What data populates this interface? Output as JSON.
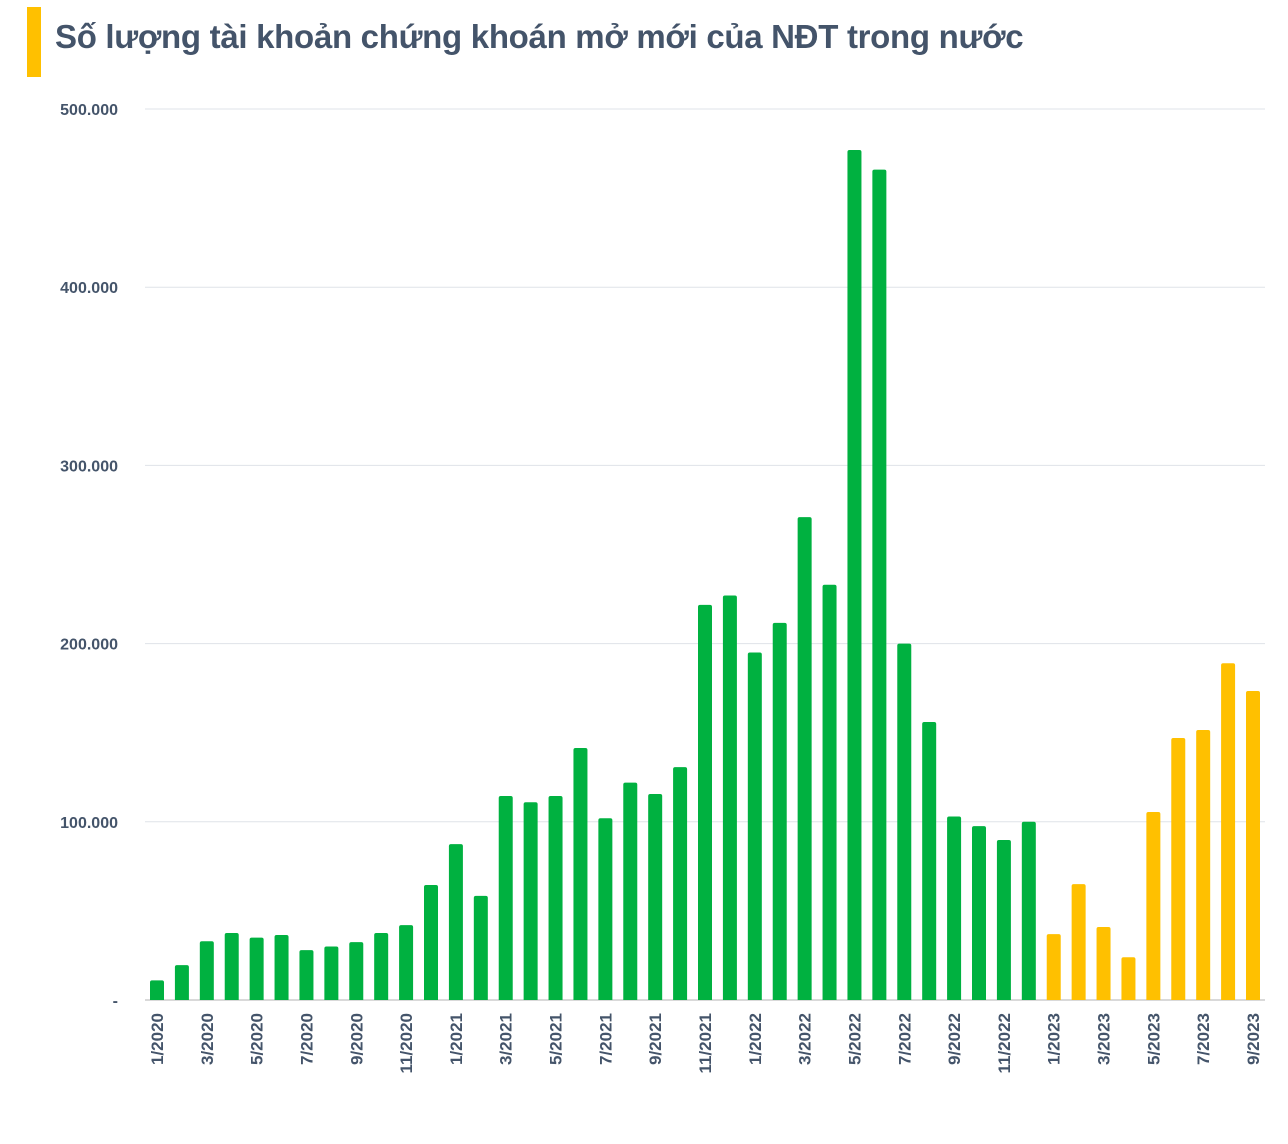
{
  "chart_data": {
    "type": "bar",
    "title": "Số lượng tài khoản chứng khoán mở mới của NĐT trong nước",
    "xlabel": "",
    "ylabel": "",
    "ylim": [
      0,
      500000
    ],
    "yticks": [
      0,
      100000,
      200000,
      300000,
      400000,
      500000
    ],
    "ytick_labels": [
      "-",
      "100.000",
      "200.000",
      "300.000",
      "400.000",
      "500.000"
    ],
    "grid": true,
    "categories": [
      "1/2020",
      "2/2020",
      "3/2020",
      "4/2020",
      "5/2020",
      "6/2020",
      "7/2020",
      "8/2020",
      "9/2020",
      "10/2020",
      "11/2020",
      "12/2020",
      "1/2021",
      "2/2021",
      "3/2021",
      "4/2021",
      "5/2021",
      "6/2021",
      "7/2021",
      "8/2021",
      "9/2021",
      "10/2021",
      "11/2021",
      "12/2021",
      "1/2022",
      "2/2022",
      "3/2022",
      "4/2022",
      "5/2022",
      "6/2022",
      "7/2022",
      "8/2022",
      "9/2022",
      "10/2022",
      "11/2022",
      "12/2022",
      "1/2023",
      "2/2023",
      "3/2023",
      "4/2023",
      "5/2023",
      "6/2023",
      "7/2023",
      "8/2023",
      "9/2023"
    ],
    "xtick_labels_shown_every": 2,
    "values": [
      11000,
      19600,
      33000,
      37600,
      35000,
      36500,
      28000,
      30000,
      32500,
      37600,
      42000,
      64500,
      87500,
      58400,
      114500,
      111000,
      114500,
      141400,
      102000,
      122000,
      115600,
      130700,
      221700,
      227000,
      195000,
      211600,
      271000,
      233000,
      477000,
      466000,
      200000,
      156000,
      103000,
      97600,
      89800,
      100000,
      37000,
      65000,
      41000,
      24000,
      105500,
      147000,
      151500,
      189000,
      173400
    ],
    "bar_colors_by_year": {
      "2020": "#00b140",
      "2021": "#00b140",
      "2022": "#00b140",
      "2023": "#ffc000"
    },
    "accent_color": "#ffc000"
  }
}
